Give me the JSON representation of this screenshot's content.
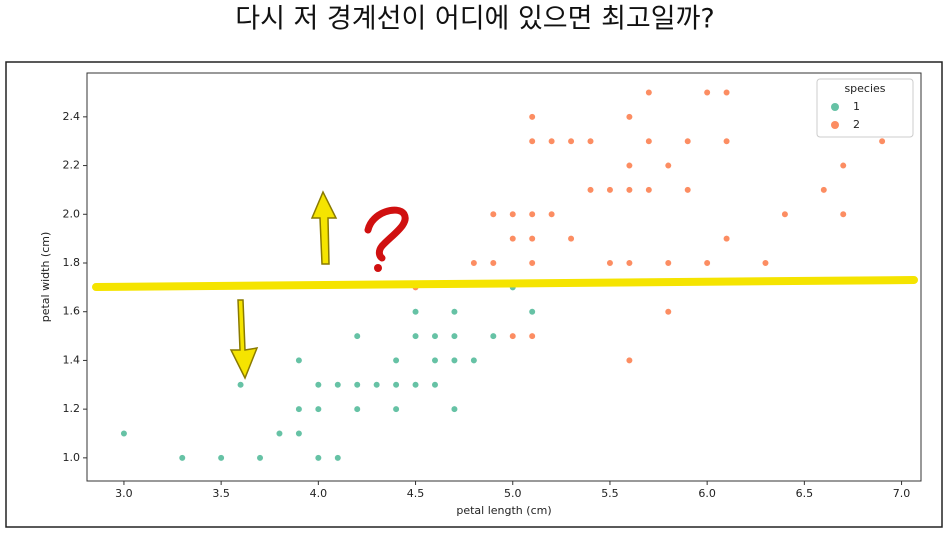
{
  "title": "다시 저 경계선이 어디에 있으면 최고일까?",
  "chart_data": {
    "type": "scatter",
    "x_label": "petal length (cm)",
    "y_label": "petal width (cm)",
    "xlim": [
      2.81,
      7.1
    ],
    "ylim": [
      0.905,
      2.58
    ],
    "xticks": [
      {
        "value": 3.0,
        "label": "3.0"
      },
      {
        "value": 3.5,
        "label": "3.5"
      },
      {
        "value": 4.0,
        "label": "4.0"
      },
      {
        "value": 4.5,
        "label": "4.5"
      },
      {
        "value": 5.0,
        "label": "5.0"
      },
      {
        "value": 5.5,
        "label": "5.5"
      },
      {
        "value": 6.0,
        "label": "6.0"
      },
      {
        "value": 6.5,
        "label": "6.5"
      },
      {
        "value": 7.0,
        "label": "7.0"
      }
    ],
    "yticks": [
      {
        "value": 1.0,
        "label": "1.0"
      },
      {
        "value": 1.2,
        "label": "1.2"
      },
      {
        "value": 1.4,
        "label": "1.4"
      },
      {
        "value": 1.6,
        "label": "1.6"
      },
      {
        "value": 1.8,
        "label": "1.8"
      },
      {
        "value": 2.0,
        "label": "2.0"
      },
      {
        "value": 2.2,
        "label": "2.2"
      },
      {
        "value": 2.4,
        "label": "2.4"
      }
    ],
    "grid": false,
    "legend_title": "species",
    "legend_position": "upper-right",
    "series": [
      {
        "name": "1",
        "color": "#66c2a5",
        "x": [
          3.3,
          3.5,
          3.7,
          4.0,
          4.1,
          3.0,
          3.8,
          3.9,
          3.9,
          4.0,
          4.2,
          4.4,
          4.7,
          3.6,
          4.0,
          4.1,
          4.2,
          4.3,
          4.4,
          4.5,
          4.6,
          3.9,
          4.4,
          4.6,
          4.7,
          4.8,
          4.2,
          4.5,
          4.6,
          4.7,
          4.9,
          4.5,
          4.7,
          5.1,
          5.0
        ],
        "values": [
          1.0,
          1.0,
          1.0,
          1.0,
          1.0,
          1.1,
          1.1,
          1.1,
          1.2,
          1.2,
          1.2,
          1.2,
          1.2,
          1.3,
          1.3,
          1.3,
          1.3,
          1.3,
          1.3,
          1.3,
          1.3,
          1.4,
          1.4,
          1.4,
          1.4,
          1.4,
          1.5,
          1.5,
          1.5,
          1.5,
          1.5,
          1.6,
          1.6,
          1.6,
          1.7
        ]
      },
      {
        "name": "2",
        "color": "#fc8d62",
        "x": [
          5.6,
          5.0,
          5.1,
          5.8,
          4.5,
          4.8,
          4.9,
          5.1,
          5.5,
          5.6,
          5.8,
          6.0,
          6.3,
          5.0,
          5.1,
          5.3,
          6.1,
          4.9,
          5.0,
          5.1,
          5.2,
          6.4,
          6.7,
          5.4,
          5.5,
          5.6,
          5.7,
          5.9,
          6.6,
          5.6,
          5.8,
          6.7,
          5.1,
          5.2,
          5.3,
          5.4,
          5.7,
          5.9,
          6.1,
          6.9,
          5.1,
          5.6,
          5.7,
          6.0,
          6.1
        ],
        "values": [
          1.4,
          1.5,
          1.5,
          1.6,
          1.7,
          1.8,
          1.8,
          1.8,
          1.8,
          1.8,
          1.8,
          1.8,
          1.8,
          1.9,
          1.9,
          1.9,
          1.9,
          2.0,
          2.0,
          2.0,
          2.0,
          2.0,
          2.0,
          2.1,
          2.1,
          2.1,
          2.1,
          2.1,
          2.1,
          2.2,
          2.2,
          2.2,
          2.3,
          2.3,
          2.3,
          2.3,
          2.3,
          2.3,
          2.3,
          2.3,
          2.4,
          2.4,
          2.5,
          2.5,
          2.5
        ]
      }
    ]
  }
}
